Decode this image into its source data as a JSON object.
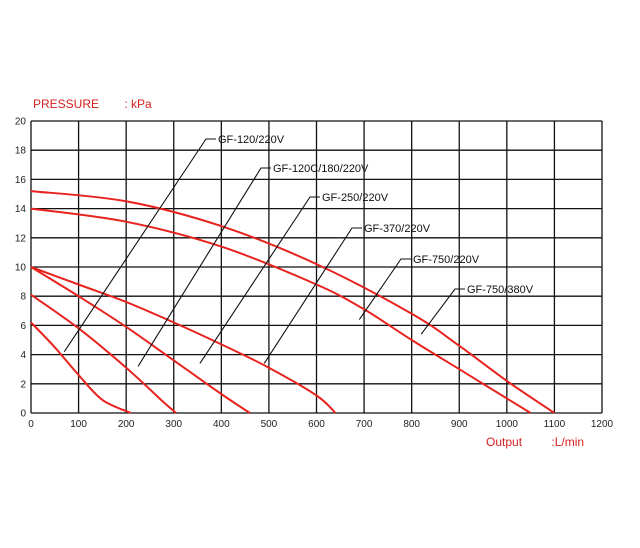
{
  "chart_data": {
    "type": "line",
    "title": "",
    "ylabel_name": "PRESSURE",
    "ylabel_unit": ": kPa",
    "xlabel_name": "Output",
    "xlabel_unit": ":L/min",
    "xlim": [
      0,
      1200
    ],
    "ylim": [
      0,
      20
    ],
    "x_ticks": [
      "0",
      "100",
      "200",
      "300",
      "400",
      "500",
      "600",
      "700",
      "800",
      "900",
      "1000",
      "1100",
      "1200"
    ],
    "y_ticks": [
      "0",
      "2",
      "4",
      "6",
      "8",
      "10",
      "12",
      "14",
      "16",
      "18",
      "20"
    ],
    "grid": true,
    "series": [
      {
        "name": "GF-120/220V",
        "x": [
          0,
          50,
          100,
          150,
          210
        ],
        "y": [
          6.2,
          4.5,
          2.6,
          0.9,
          0
        ],
        "leader_anchor": [
          70,
          4.2
        ]
      },
      {
        "name": "GF-120C/180/220V",
        "x": [
          0,
          100,
          200,
          280,
          305
        ],
        "y": [
          8.1,
          5.8,
          3.1,
          0.7,
          0
        ],
        "leader_anchor": [
          225,
          3.2
        ]
      },
      {
        "name": "GF-250/220V",
        "x": [
          0,
          100,
          200,
          300,
          400,
          460
        ],
        "y": [
          10.0,
          8.0,
          5.9,
          3.6,
          1.3,
          0
        ],
        "leader_anchor": [
          355,
          3.4
        ]
      },
      {
        "name": "GF-370/220V",
        "x": [
          0,
          100,
          200,
          300,
          400,
          500,
          600,
          640
        ],
        "y": [
          10.0,
          8.8,
          7.6,
          6.2,
          4.7,
          3.1,
          1.2,
          0
        ],
        "leader_anchor": [
          490,
          3.4
        ]
      },
      {
        "name": "GF-750/220V",
        "x": [
          0,
          200,
          400,
          600,
          700,
          800,
          900,
          1000,
          1050
        ],
        "y": [
          14.0,
          13.1,
          11.4,
          8.8,
          7.1,
          5.0,
          3.0,
          1.0,
          0
        ],
        "leader_anchor": [
          690,
          6.4
        ]
      },
      {
        "name": "GF-750/380V",
        "x": [
          0,
          200,
          400,
          600,
          800,
          900,
          1000,
          1100
        ],
        "y": [
          15.2,
          14.5,
          12.8,
          10.2,
          6.8,
          4.6,
          2.2,
          0
        ],
        "leader_anchor": [
          820,
          5.4
        ]
      }
    ]
  }
}
